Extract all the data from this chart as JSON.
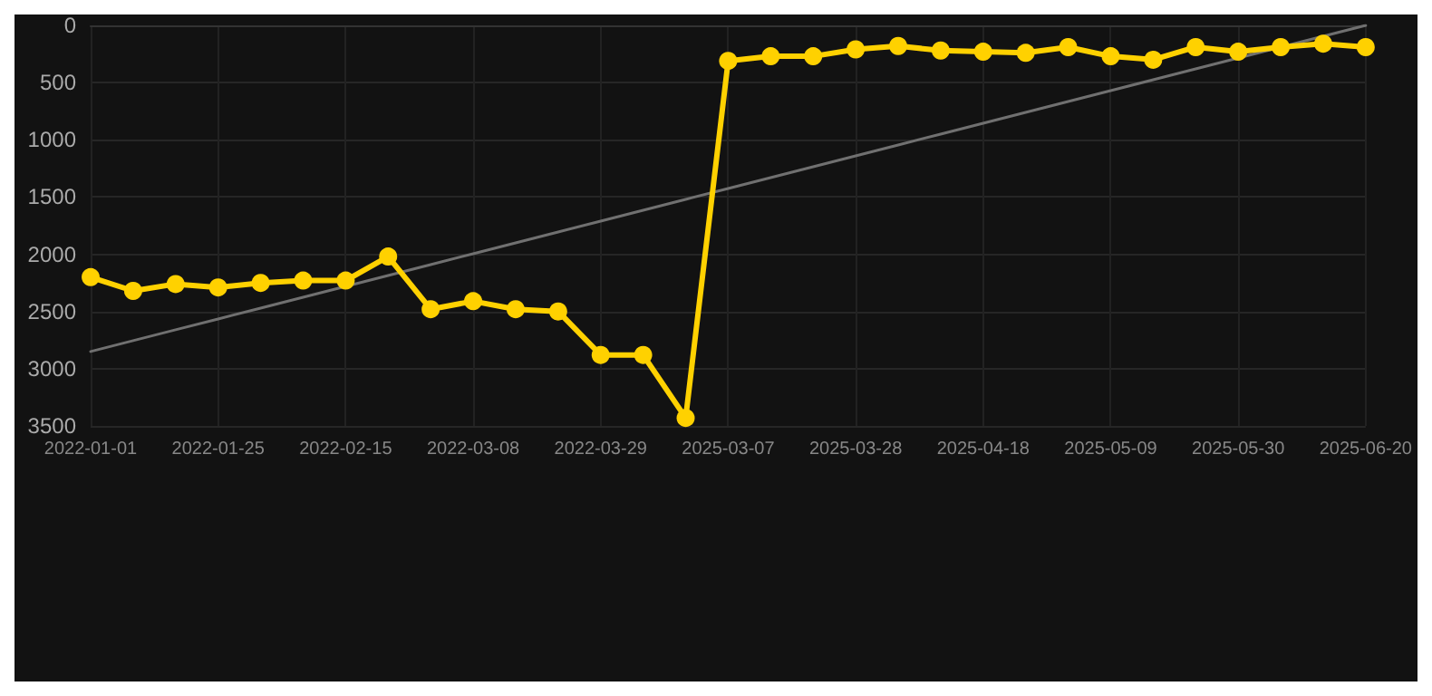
{
  "chart_data": {
    "type": "line",
    "categories": [
      "2022-01-01",
      null,
      null,
      "2022-01-25",
      null,
      null,
      "2022-02-15",
      null,
      null,
      "2022-03-08",
      null,
      null,
      "2022-03-29",
      null,
      null,
      "2025-03-07",
      null,
      null,
      "2025-03-28",
      null,
      null,
      "2025-04-18",
      null,
      null,
      "2025-05-09",
      null,
      null,
      "2025-05-30",
      null,
      null,
      "2025-06-20"
    ],
    "series": [
      {
        "color": "#ffd100",
        "marker": "circle",
        "values": [
          2200,
          2320,
          2260,
          2290,
          2250,
          2230,
          2230,
          2020,
          2480,
          2410,
          2480,
          2500,
          2880,
          2880,
          3430,
          310,
          270,
          270,
          210,
          180,
          220,
          230,
          240,
          190,
          270,
          300,
          190,
          230,
          190,
          160,
          190
        ]
      },
      {
        "type": "line",
        "color": "#707070",
        "marker": "none",
        "values": [
          2850,
          2755,
          2660,
          2565,
          2470,
          2375,
          2280,
          2185,
          2090,
          1995,
          1900,
          1805,
          1710,
          1615,
          1520,
          1425,
          1330,
          1235,
          1140,
          1045,
          950,
          855,
          760,
          665,
          570,
          475,
          380,
          285,
          190,
          95,
          0
        ]
      }
    ],
    "ylim": [
      3500,
      0
    ],
    "yticks": [
      0,
      500,
      1000,
      1500,
      2000,
      2500,
      3000,
      3500
    ],
    "grid": true
  }
}
